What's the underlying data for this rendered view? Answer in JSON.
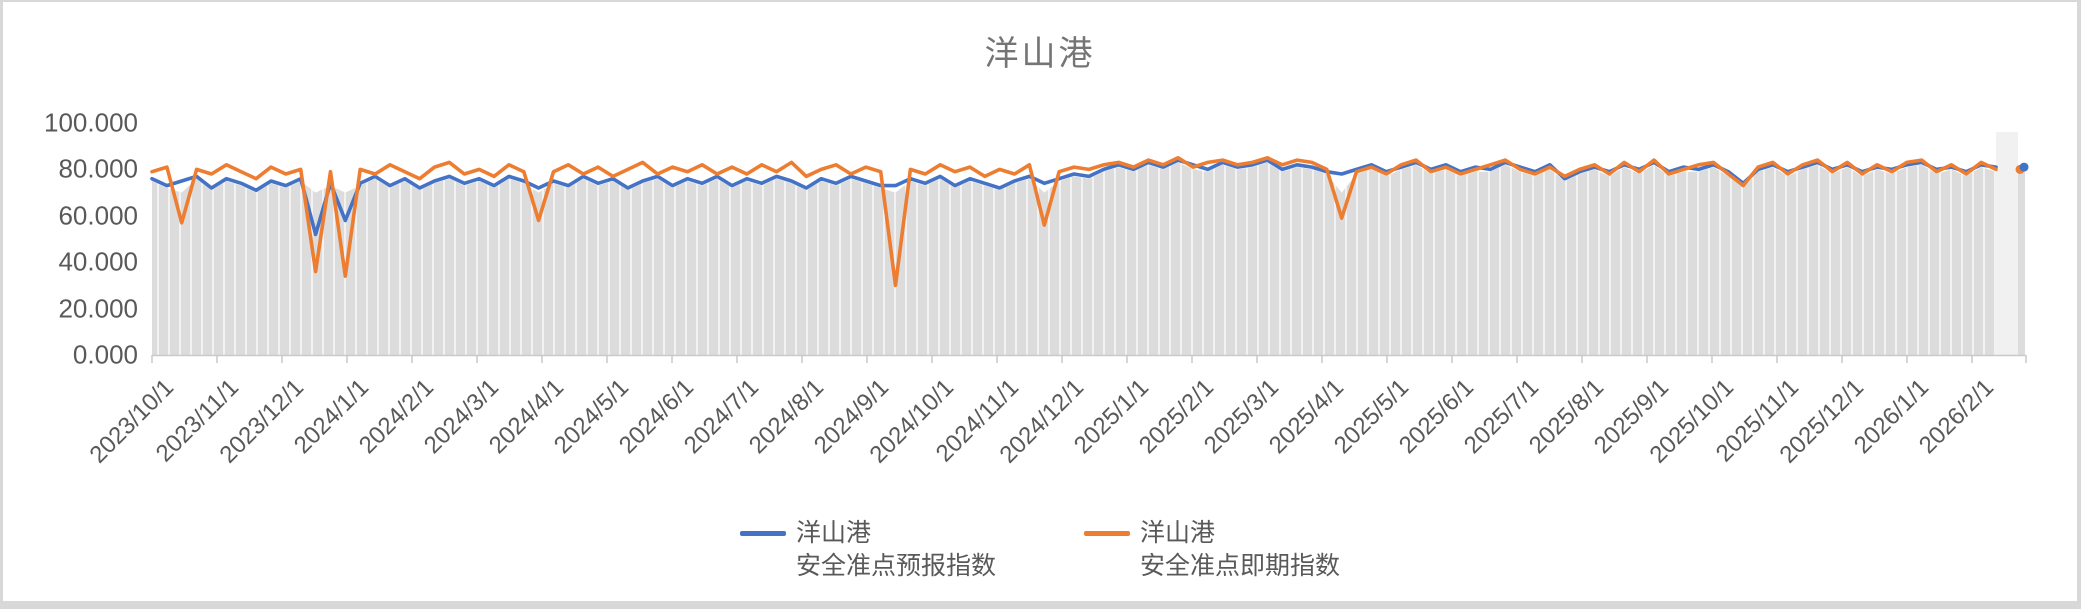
{
  "title": {
    "text": "洋山港",
    "color": "#757575"
  },
  "colors": {
    "forecast_line": "#4472C4",
    "spot_line": "#ED7D31",
    "area_fill": "#dcdcdc",
    "area_fill_light": "#f1f1f1",
    "axis": "#c9c9c9",
    "tick_text": "#595959",
    "gridline_white": "#ffffff"
  },
  "legend": {
    "items": [
      {
        "label_line1": "洋山港",
        "label_line2": "安全准点预报指数",
        "color": "#4472C4"
      },
      {
        "label_line1": "洋山港",
        "label_line2": "安全准点即期指数",
        "color": "#ED7D31"
      }
    ]
  },
  "chart_data": {
    "type": "line",
    "title": "洋山港",
    "xlabel": "",
    "ylabel": "",
    "ylim": [
      0,
      100
    ],
    "grid": "vertical white lines over gray background area; no horizontal gridlines",
    "legend_position": "bottom",
    "y_tick_labels": [
      "0.000",
      "20.000",
      "40.000",
      "60.000",
      "80.000",
      "100.000"
    ],
    "x_tick_labels": [
      "2023/10/1",
      "2023/11/1",
      "2023/12/1",
      "2024/1/1",
      "2024/2/1",
      "2024/3/1",
      "2024/4/1",
      "2024/5/1",
      "2024/6/1",
      "2024/7/1",
      "2024/8/1",
      "2024/9/1",
      "2024/10/1",
      "2024/11/1",
      "2024/12/1",
      "2025/1/1",
      "2025/2/1",
      "2025/3/1",
      "2025/4/1",
      "2025/5/1",
      "2025/6/1",
      "2025/7/1",
      "2025/8/1",
      "2025/9/1",
      "2025/10/1",
      "2025/11/1",
      "2025/12/1",
      "2026/1/1",
      "2026/2/1"
    ],
    "x_start": "2023/10/1",
    "sampling": "weekly samples (daily series approximated), week 0 = 2023/10/1",
    "series": [
      {
        "name": "洋山港 安全准点预报指数",
        "color": "#4472C4",
        "values": [
          76,
          73,
          75,
          77,
          72,
          76,
          74,
          71,
          75,
          73,
          76,
          52,
          74,
          58,
          74,
          77,
          73,
          76,
          72,
          75,
          77,
          74,
          76,
          73,
          77,
          75,
          72,
          75,
          73,
          77,
          74,
          76,
          72,
          75,
          77,
          73,
          76,
          74,
          77,
          73,
          76,
          74,
          77,
          75,
          72,
          76,
          74,
          77,
          75,
          73,
          73,
          76,
          74,
          77,
          73,
          76,
          74,
          72,
          75,
          77,
          74,
          76,
          78,
          77,
          80,
          82,
          80,
          83,
          81,
          84,
          82,
          80,
          83,
          81,
          82,
          84,
          80,
          82,
          81,
          79,
          78,
          80,
          82,
          79,
          81,
          83,
          80,
          82,
          79,
          81,
          80,
          83,
          81,
          79,
          82,
          76,
          79,
          81,
          79,
          82,
          80,
          83,
          79,
          81,
          80,
          82,
          79,
          74,
          80,
          82,
          79,
          81,
          83,
          80,
          82,
          79,
          81,
          80,
          82,
          83,
          80,
          81,
          79,
          82,
          81
        ]
      },
      {
        "name": "洋山港 安全准点即期指数",
        "color": "#ED7D31",
        "values": [
          79,
          81,
          57,
          80,
          78,
          82,
          79,
          76,
          81,
          78,
          80,
          36,
          79,
          34,
          80,
          78,
          82,
          79,
          76,
          81,
          83,
          78,
          80,
          77,
          82,
          79,
          58,
          79,
          82,
          78,
          81,
          77,
          80,
          83,
          78,
          81,
          79,
          82,
          78,
          81,
          78,
          82,
          79,
          83,
          77,
          80,
          82,
          78,
          81,
          79,
          30,
          80,
          78,
          82,
          79,
          81,
          77,
          80,
          78,
          82,
          56,
          79,
          81,
          80,
          82,
          83,
          81,
          84,
          82,
          85,
          81,
          83,
          84,
          82,
          83,
          85,
          82,
          84,
          83,
          80,
          59,
          79,
          81,
          78,
          82,
          84,
          79,
          81,
          78,
          80,
          82,
          84,
          80,
          78,
          81,
          77,
          80,
          82,
          78,
          83,
          79,
          84,
          78,
          80,
          82,
          83,
          78,
          73,
          81,
          83,
          78,
          82,
          84,
          79,
          83,
          78,
          82,
          79,
          83,
          84,
          79,
          82,
          78,
          83,
          80
        ]
      }
    ],
    "notable_dips": [
      {
        "date": "2023/10/17",
        "series": "即期",
        "value": 57
      },
      {
        "date": "2023/12/16",
        "series": "即期",
        "value": 36
      },
      {
        "date": "2023/12/16",
        "series": "预报",
        "value": 52
      },
      {
        "date": "2023/12/28",
        "series": "即期",
        "value": 34
      },
      {
        "date": "2024/4/1",
        "series": "即期",
        "value": 58
      },
      {
        "date": "2024/9/15",
        "series": "即期",
        "value": 30
      },
      {
        "date": "2024/11/25",
        "series": "即期",
        "value": 56
      },
      {
        "date": "2025/4/10",
        "series": "即期",
        "value": 59
      },
      {
        "date": "2025/10/20",
        "series": "both",
        "value": 73
      }
    ],
    "last_isolated_point": {
      "forecast": 81,
      "spot": 80,
      "approx_date": "2026/2/24"
    }
  }
}
